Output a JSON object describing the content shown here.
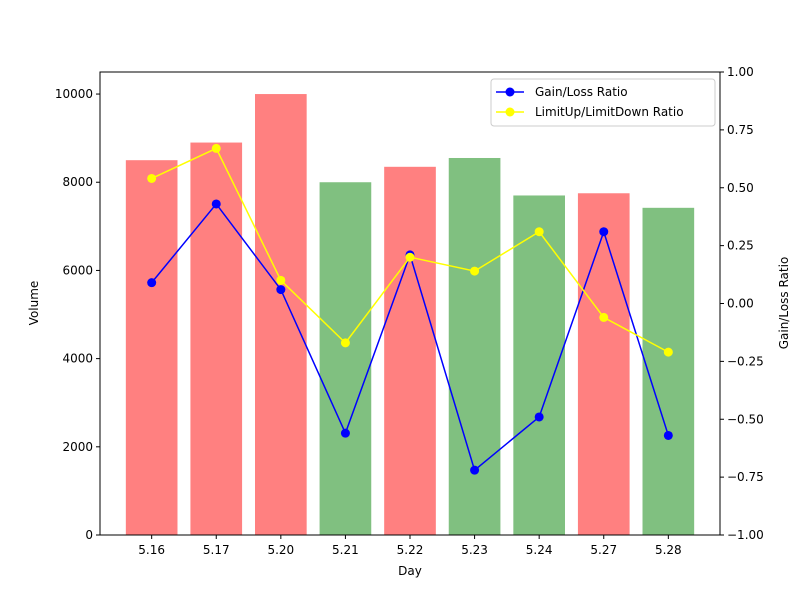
{
  "chart_data": {
    "type": "bar",
    "xlabel": "Day",
    "ylabel_left": "Volume",
    "ylabel_right": "Gain/Loss Ratio",
    "categories": [
      "5.16",
      "5.17",
      "5.20",
      "5.21",
      "5.22",
      "5.23",
      "5.24",
      "5.27",
      "5.28"
    ],
    "bars": {
      "name": "Volume",
      "values": [
        8500,
        8900,
        10000,
        8000,
        8350,
        8550,
        7700,
        7750,
        7420
      ],
      "colors": [
        "#ff8080",
        "#ff8080",
        "#ff8080",
        "#80c080",
        "#ff8080",
        "#80c080",
        "#80c080",
        "#ff8080",
        "#80c080"
      ]
    },
    "series": [
      {
        "name": "Gain/Loss Ratio",
        "color": "#0000ff",
        "axis": "right",
        "values": [
          0.09,
          0.43,
          0.06,
          -0.56,
          0.21,
          -0.72,
          -0.49,
          0.31,
          -0.57
        ]
      },
      {
        "name": "LimitUp/LimitDown Ratio",
        "color": "#ffff00",
        "axis": "right",
        "values": [
          0.54,
          0.67,
          0.1,
          -0.17,
          0.2,
          0.14,
          0.31,
          -0.06,
          -0.21
        ]
      }
    ],
    "ylim_left": [
      0,
      10500
    ],
    "yticks_left": [
      "0",
      "2000",
      "4000",
      "6000",
      "8000",
      "10000"
    ],
    "ylim_right": [
      -1.0,
      1.0
    ],
    "yticks_right": [
      "−1.00",
      "−0.75",
      "−0.50",
      "−0.25",
      "0.00",
      "0.25",
      "0.50",
      "0.75",
      "1.00"
    ],
    "legend_position": "top-right",
    "grid": false
  }
}
